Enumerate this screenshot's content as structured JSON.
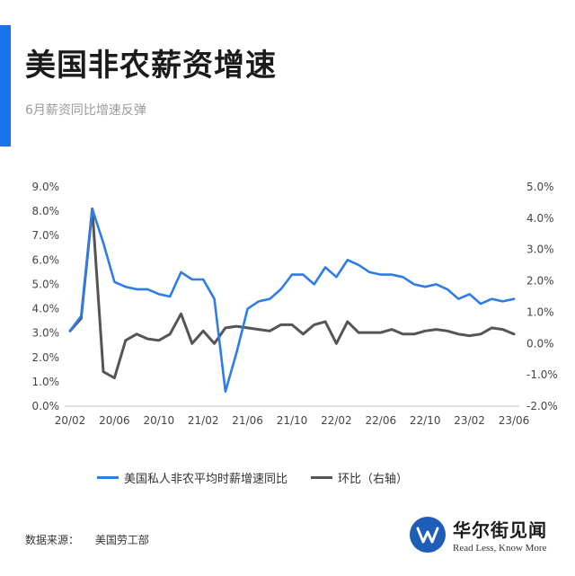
{
  "header": {
    "title": "美国非农薪资增速",
    "subtitle": "6月薪资同比增速反弹"
  },
  "footer": {
    "source_label": "数据来源：",
    "source_value": "美国劳工部"
  },
  "brand": {
    "name": "华尔街见闻",
    "tagline": "Read Less, Know More",
    "logo_icon": "w-logo-icon",
    "color": "#1e5eb8"
  },
  "chart_data": {
    "type": "line",
    "title": "",
    "x": [
      "20/02",
      "20/03",
      "20/04",
      "20/05",
      "20/06",
      "20/07",
      "20/08",
      "20/09",
      "20/10",
      "20/11",
      "20/12",
      "21/01",
      "21/02",
      "21/03",
      "21/04",
      "21/05",
      "21/06",
      "21/07",
      "21/08",
      "21/09",
      "21/10",
      "21/11",
      "21/12",
      "22/01",
      "22/02",
      "22/03",
      "22/04",
      "22/05",
      "22/06",
      "22/07",
      "22/08",
      "22/09",
      "22/10",
      "22/11",
      "22/12",
      "23/01",
      "23/02",
      "23/03",
      "23/04",
      "23/05",
      "23/06"
    ],
    "x_tick_labels": [
      "20/02",
      "20/06",
      "20/10",
      "21/02",
      "21/06",
      "21/10",
      "22/02",
      "22/06",
      "22/10",
      "23/02",
      "23/06"
    ],
    "y_left": {
      "ylim": [
        0,
        9
      ],
      "tick_labels": [
        "0.0%",
        "1.0%",
        "2.0%",
        "3.0%",
        "4.0%",
        "5.0%",
        "6.0%",
        "7.0%",
        "8.0%",
        "9.0%"
      ]
    },
    "y_right": {
      "ylim": [
        -2,
        5
      ],
      "tick_labels": [
        "-2.0%",
        "-1.0%",
        "0.0%",
        "1.0%",
        "2.0%",
        "3.0%",
        "4.0%",
        "5.0%"
      ]
    },
    "series": [
      {
        "name": "美国私人非农平均时薪增速同比",
        "axis": "left",
        "color": "#2f7ce6",
        "values": [
          3.1,
          3.7,
          8.1,
          6.7,
          5.1,
          4.9,
          4.8,
          4.8,
          4.6,
          4.5,
          5.5,
          5.2,
          5.2,
          4.4,
          0.6,
          2.2,
          4.0,
          4.3,
          4.4,
          4.8,
          5.4,
          5.4,
          5.0,
          5.7,
          5.3,
          6.0,
          5.8,
          5.5,
          5.4,
          5.4,
          5.3,
          5.0,
          4.9,
          5.0,
          4.8,
          4.4,
          4.6,
          4.2,
          4.4,
          4.3,
          4.4
        ]
      },
      {
        "name": "环比（右轴）",
        "axis": "right",
        "color": "#555555",
        "values": [
          0.4,
          0.8,
          4.3,
          -0.9,
          -1.1,
          0.1,
          0.3,
          0.15,
          0.1,
          0.3,
          0.95,
          0.0,
          0.4,
          0.0,
          0.5,
          0.55,
          0.5,
          0.45,
          0.4,
          0.6,
          0.6,
          0.3,
          0.6,
          0.7,
          0.0,
          0.7,
          0.35,
          0.35,
          0.35,
          0.45,
          0.3,
          0.3,
          0.4,
          0.45,
          0.4,
          0.3,
          0.25,
          0.3,
          0.5,
          0.45,
          0.3
        ]
      }
    ],
    "legend": "bottom",
    "grid": false
  }
}
